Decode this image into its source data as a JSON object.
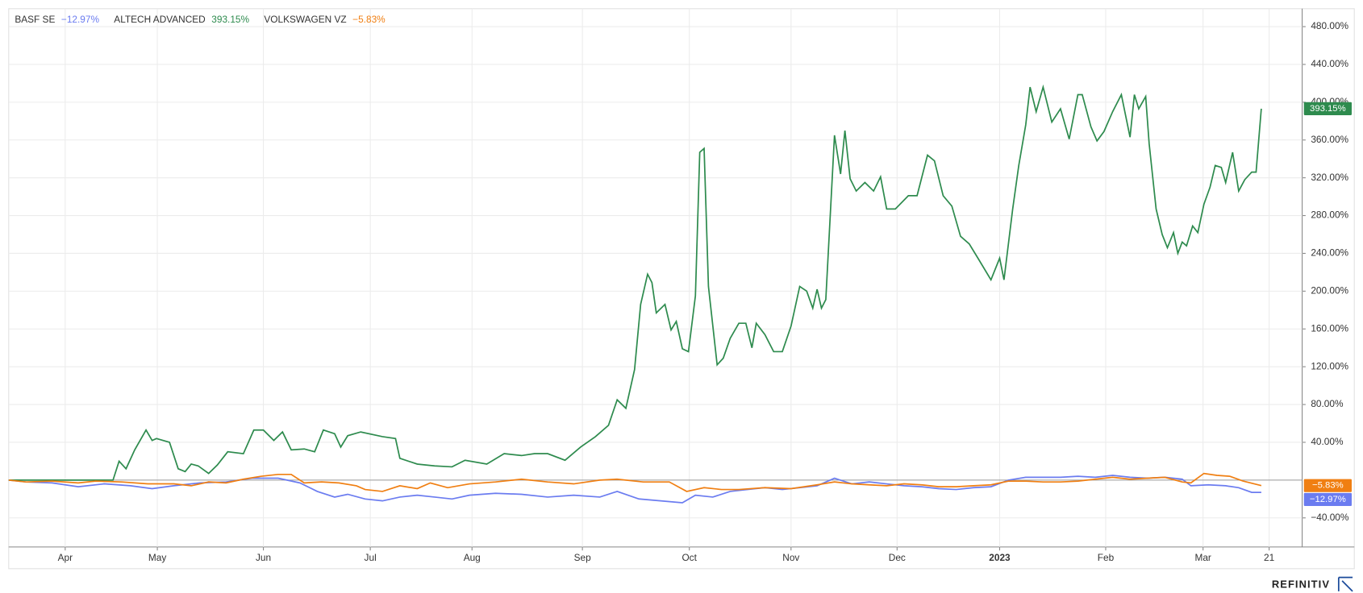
{
  "chart_data": {
    "type": "line",
    "xlim": [
      0,
      1488
    ],
    "ylim": [
      -70.8,
      499
    ],
    "xticks": [
      {
        "value": 65,
        "label": "Apr"
      },
      {
        "value": 171,
        "label": "May"
      },
      {
        "value": 293,
        "label": "Jun"
      },
      {
        "value": 416,
        "label": "Jul"
      },
      {
        "value": 533,
        "label": "Aug"
      },
      {
        "value": 660,
        "label": "Sep"
      },
      {
        "value": 783,
        "label": "Oct"
      },
      {
        "value": 900,
        "label": "Nov"
      },
      {
        "value": 1022,
        "label": "Dec"
      },
      {
        "value": 1140,
        "label": "2023"
      },
      {
        "value": 1262,
        "label": "Feb"
      },
      {
        "value": 1374,
        "label": "Mar"
      },
      {
        "value": 1450,
        "label": "21"
      }
    ],
    "yticks": [
      {
        "value": -40,
        "label": "−40.00%"
      },
      {
        "value": 40,
        "label": "40.00%"
      },
      {
        "value": 80,
        "label": "80.00%"
      },
      {
        "value": 120,
        "label": "120.00%"
      },
      {
        "value": 160,
        "label": "160.00%"
      },
      {
        "value": 200,
        "label": "200.00%"
      },
      {
        "value": 240,
        "label": "240.00%"
      },
      {
        "value": 280,
        "label": "280.00%"
      },
      {
        "value": 320,
        "label": "320.00%"
      },
      {
        "value": 360,
        "label": "360.00%"
      },
      {
        "value": 400,
        "label": "400.00%"
      },
      {
        "value": 440,
        "label": "440.00%"
      },
      {
        "value": 480,
        "label": "480.00%"
      }
    ],
    "reference_line": 0,
    "grid": true,
    "footer": "REFINITIV",
    "series": [
      {
        "name": "BASF SE",
        "color": "#6b7cf0",
        "end_label": "−12.97%",
        "x": [
          0,
          20,
          50,
          80,
          110,
          140,
          165,
          190,
          220,
          250,
          280,
          310,
          335,
          355,
          375,
          390,
          410,
          430,
          450,
          470,
          490,
          510,
          530,
          560,
          590,
          620,
          650,
          680,
          700,
          725,
          750,
          775,
          790,
          810,
          830,
          850,
          870,
          890,
          910,
          930,
          950,
          970,
          990,
          1010,
          1030,
          1050,
          1070,
          1090,
          1110,
          1130,
          1150,
          1170,
          1190,
          1210,
          1230,
          1250,
          1270,
          1290,
          1310,
          1330,
          1350,
          1360,
          1380,
          1400,
          1415,
          1430,
          1441
        ],
        "values": [
          0,
          -2,
          -3,
          -7,
          -4,
          -6,
          -9,
          -6,
          -3,
          -2,
          2,
          2,
          -3,
          -12,
          -18,
          -15,
          -20,
          -22,
          -18,
          -16,
          -18,
          -20,
          -16,
          -14,
          -15,
          -18,
          -16,
          -18,
          -12,
          -20,
          -22,
          -24,
          -16,
          -18,
          -12,
          -10,
          -8,
          -10,
          -8,
          -6,
          2,
          -4,
          -2,
          -4,
          -6,
          -7,
          -9,
          -10,
          -8,
          -7,
          0,
          3,
          3,
          3,
          4,
          3,
          5,
          3,
          2,
          3,
          1,
          -6,
          -5,
          -6,
          -8,
          -13,
          -12.97
        ]
      },
      {
        "name": "ALTECH ADVANCED",
        "color": "#2e8b4e",
        "end_label": "393.15%",
        "x": [
          0,
          25,
          50,
          90,
          120,
          127,
          135,
          145,
          158,
          165,
          170,
          185,
          195,
          203,
          210,
          218,
          230,
          240,
          252,
          270,
          282,
          293,
          305,
          315,
          325,
          340,
          352,
          362,
          375,
          382,
          390,
          405,
          430,
          445,
          450,
          470,
          490,
          510,
          525,
          550,
          570,
          590,
          605,
          620,
          640,
          658,
          675,
          690,
          700,
          710,
          720,
          727,
          735,
          740,
          745,
          755,
          762,
          768,
          775,
          782,
          790,
          795,
          800,
          805,
          815,
          822,
          830,
          840,
          848,
          855,
          860,
          870,
          880,
          890,
          900,
          910,
          918,
          925,
          930,
          935,
          940,
          950,
          957,
          962,
          968,
          975,
          985,
          995,
          1003,
          1010,
          1020,
          1035,
          1045,
          1057,
          1065,
          1075,
          1085,
          1095,
          1105,
          1115,
          1130,
          1140,
          1145,
          1155,
          1162,
          1170,
          1175,
          1182,
          1190,
          1200,
          1210,
          1220,
          1230,
          1235,
          1245,
          1252,
          1260,
          1270,
          1280,
          1290,
          1295,
          1300,
          1308,
          1312,
          1320,
          1327,
          1333,
          1340,
          1345,
          1350,
          1355,
          1362,
          1368,
          1375,
          1382,
          1388,
          1395,
          1400,
          1408,
          1415,
          1422,
          1430,
          1435,
          1441
        ],
        "values": [
          0,
          0,
          0,
          0,
          0,
          20,
          12,
          32,
          53,
          42,
          44,
          40,
          12,
          9,
          17,
          15,
          7,
          16,
          30,
          28,
          53,
          53,
          42,
          51,
          32,
          33,
          30,
          53,
          49,
          35,
          47,
          51,
          46,
          44,
          23,
          17,
          15,
          14,
          21,
          17,
          28,
          26,
          28,
          28,
          21,
          35,
          46,
          58,
          85,
          76,
          117,
          186,
          218,
          209,
          177,
          186,
          159,
          168,
          139,
          136,
          195,
          347,
          351,
          205,
          122,
          129,
          150,
          166,
          166,
          140,
          166,
          154,
          136,
          136,
          163,
          205,
          200,
          182,
          202,
          182,
          191,
          365,
          324,
          370,
          319,
          306,
          315,
          306,
          321,
          287,
          287,
          301,
          301,
          344,
          338,
          301,
          290,
          258,
          250,
          235,
          212,
          235,
          212,
          287,
          333,
          376,
          416,
          390,
          416,
          379,
          393,
          361,
          408,
          408,
          374,
          359,
          369,
          390,
          408,
          363,
          408,
          393,
          406,
          356,
          287,
          260,
          246,
          262,
          240,
          252,
          248,
          269,
          262,
          292,
          310,
          333,
          331,
          315,
          347,
          306,
          318,
          326,
          326,
          393.15
        ]
      },
      {
        "name": "VOLKSWAGEN VZ",
        "color": "#f07f12",
        "end_label": "−5.83%",
        "x": [
          0,
          20,
          50,
          80,
          100,
          130,
          160,
          190,
          210,
          230,
          250,
          270,
          290,
          310,
          325,
          340,
          360,
          380,
          400,
          410,
          430,
          450,
          470,
          485,
          505,
          530,
          560,
          590,
          620,
          650,
          680,
          700,
          730,
          760,
          780,
          800,
          820,
          840,
          870,
          900,
          930,
          950,
          970,
          990,
          1010,
          1030,
          1050,
          1070,
          1090,
          1110,
          1130,
          1150,
          1170,
          1190,
          1210,
          1230,
          1250,
          1270,
          1290,
          1310,
          1330,
          1350,
          1360,
          1375,
          1390,
          1405,
          1420,
          1441
        ],
        "values": [
          0,
          -2,
          -1,
          -3,
          -1,
          -2,
          -4,
          -4,
          -6,
          -2,
          -3,
          1,
          4,
          6,
          6,
          -3,
          -2,
          -3,
          -6,
          -10,
          -12,
          -6,
          -9,
          -3,
          -8,
          -4,
          -2,
          1,
          -2,
          -4,
          0,
          1,
          -2,
          -2,
          -12,
          -8,
          -10,
          -10,
          -8,
          -9,
          -5,
          -2,
          -4,
          -5,
          -6,
          -4,
          -5,
          -7,
          -7,
          -6,
          -5,
          -1,
          -1,
          -2,
          -2,
          -1,
          1,
          3,
          1,
          2,
          3,
          -2,
          -3,
          7,
          5,
          4,
          -1,
          -5.83
        ]
      }
    ]
  }
}
